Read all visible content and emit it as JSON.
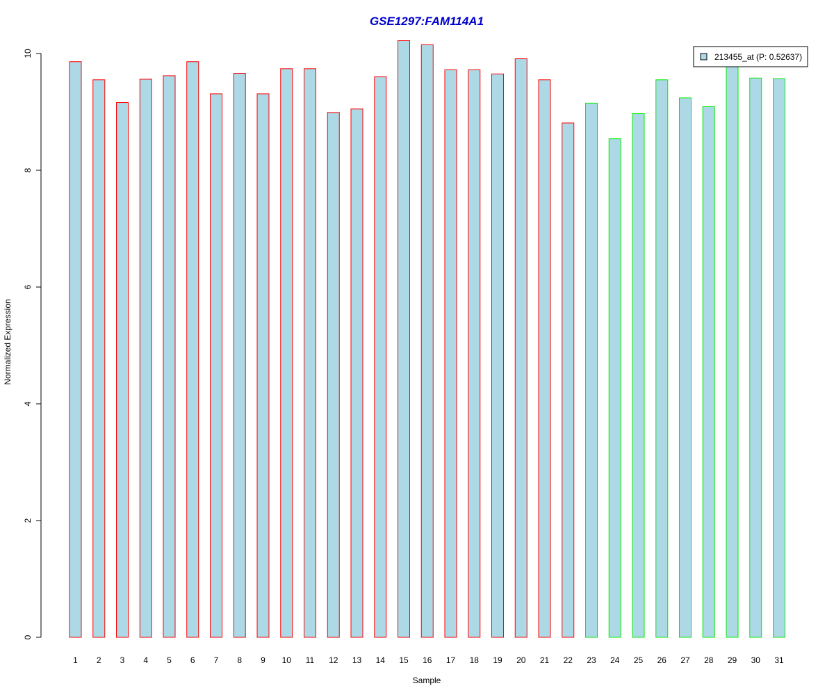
{
  "chart_data": {
    "type": "bar",
    "title": "GSE1297:FAM114A1",
    "xlabel": "Sample",
    "ylabel": "Normalized Expression",
    "ylim": [
      0,
      10
    ],
    "y_ticks": [
      "0",
      "2",
      "4",
      "6",
      "8",
      "10"
    ],
    "categories": [
      "1",
      "2",
      "3",
      "4",
      "5",
      "6",
      "7",
      "8",
      "9",
      "10",
      "11",
      "12",
      "13",
      "14",
      "15",
      "16",
      "17",
      "18",
      "19",
      "20",
      "21",
      "22",
      "23",
      "24",
      "25",
      "26",
      "27",
      "28",
      "29",
      "30",
      "31"
    ],
    "values": [
      9.86,
      9.55,
      9.16,
      9.56,
      9.62,
      9.86,
      9.31,
      9.66,
      9.31,
      9.74,
      9.74,
      8.99,
      9.05,
      9.6,
      10.22,
      10.15,
      9.72,
      9.72,
      9.65,
      9.91,
      9.55,
      8.81,
      9.15,
      8.54,
      8.97,
      9.55,
      9.24,
      9.09,
      9.84,
      9.58,
      9.57
    ],
    "groups": [
      "red",
      "red",
      "red",
      "red",
      "red",
      "red",
      "red",
      "red",
      "red",
      "red",
      "red",
      "red",
      "red",
      "red",
      "red",
      "red",
      "red",
      "red",
      "red",
      "red",
      "red",
      "red",
      "green",
      "green",
      "green",
      "green",
      "green",
      "green",
      "green",
      "green",
      "green"
    ],
    "group_colors": {
      "red": "#ff0000",
      "green": "#00ee00"
    },
    "bar_fill": "#add8e6",
    "title_color": "#0000cc",
    "legend": {
      "label": "213455_at (P: 0.52637)",
      "position": "top-right"
    }
  }
}
